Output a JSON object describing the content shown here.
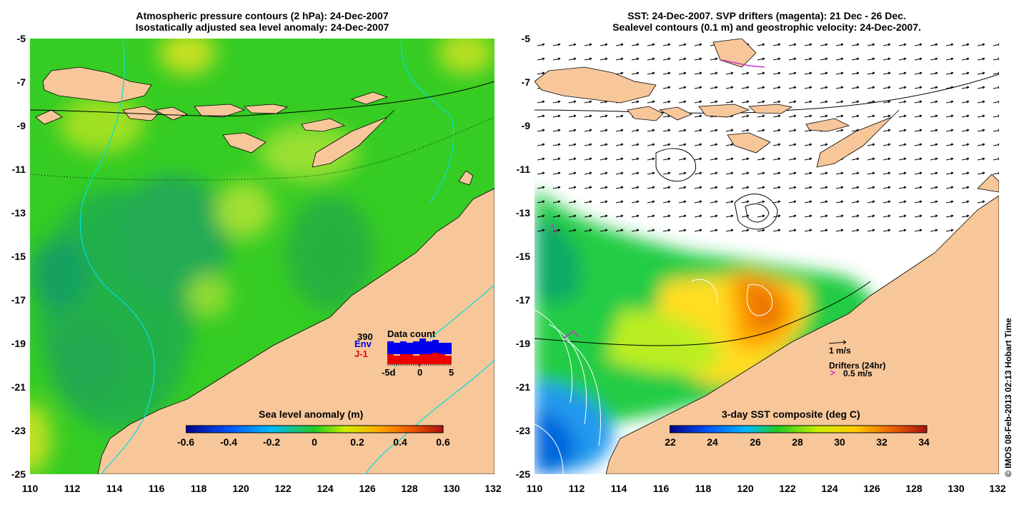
{
  "left_panel": {
    "title_line1": "Atmospheric pressure contours (2 hPa): 24-Dec-2007",
    "title_line2": "Isostatically adjusted sea level anomaly: 24-Dec-2007",
    "colorbar_title": "Sea level anomaly (m)",
    "colorbar_ticks": [
      "-0.6",
      "-0.4",
      "-0.2",
      "0",
      "0.2",
      "0.4",
      "0.6"
    ],
    "inset": {
      "count": "390",
      "env_label": "Env",
      "j1_label": "J-1",
      "title": "Data count",
      "x_ticks": [
        "-5d",
        "0",
        "5"
      ],
      "env_color": "#0000ee",
      "j1_color": "#ee0000"
    }
  },
  "right_panel": {
    "title_line1": "SST: 24-Dec-2007. SVP drifters (magenta): 21 Dec - 26 Dec.",
    "title_line2": "Sealevel contours (0.1 m) and geostrophic velocity: 24-Dec-2007.",
    "colorbar_title": "3-day SST composite (deg C)",
    "colorbar_ticks": [
      "22",
      "24",
      "26",
      "28",
      "30",
      "32",
      "34"
    ],
    "scale_label": "1 m/s",
    "drifters_label": "Drifters (24hr)",
    "drifter_scale": "0.5 m/s",
    "drifter_color": "#cc33cc"
  },
  "axes": {
    "lon_ticks": [
      "110",
      "112",
      "114",
      "116",
      "118",
      "120",
      "122",
      "124",
      "126",
      "128",
      "130",
      "132"
    ],
    "lat_ticks": [
      "-5",
      "-7",
      "-9",
      "-11",
      "-13",
      "-15",
      "-17",
      "-19",
      "-21",
      "-23",
      "-25"
    ]
  },
  "credit": "© IMOS 08-Feb-2013 02:13 Hobart Time",
  "colors": {
    "land": "#f7c79a",
    "sla_background": "#33cc22"
  }
}
